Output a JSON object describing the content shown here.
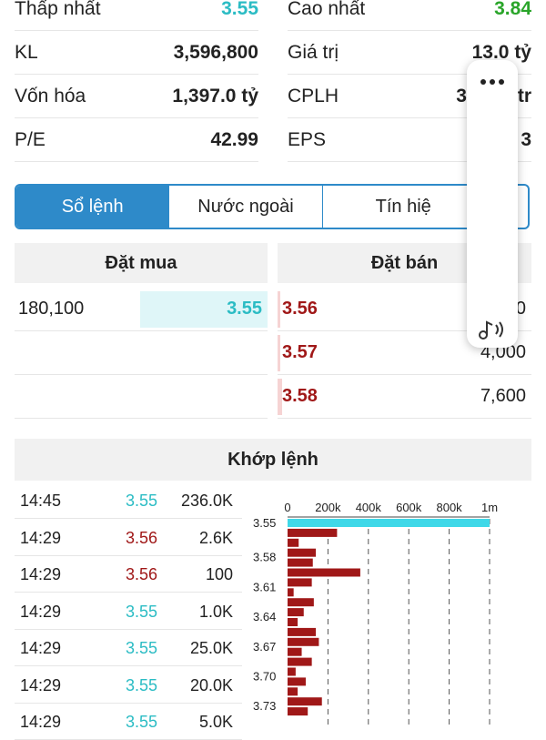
{
  "stats": [
    {
      "left_label": "Thấp nhất",
      "left_value": "3.55",
      "right_label": "Cao nhất",
      "right_value": "3.84"
    },
    {
      "left_label": "KL",
      "left_value": "3,596,800",
      "right_label": "Giá trị",
      "right_value": "13.0 tỷ"
    },
    {
      "left_label": "Vốn hóa",
      "left_value": "1,397.0 tỷ",
      "right_label": "CPLH",
      "right_value": "3",
      "right_suffix": "tr"
    },
    {
      "left_label": "P/E",
      "left_value": "42.99",
      "right_label": "EPS",
      "right_value": "3"
    }
  ],
  "tabs": [
    {
      "label": "Sổ lệnh"
    },
    {
      "label": "Nước ngoài"
    },
    {
      "label": "Tín hiệ"
    }
  ],
  "orderbook": {
    "buy_header": "Đặt mua",
    "sell_header": "Đặt bán",
    "buy_rows": [
      {
        "volume": "180,100",
        "price": "3.55",
        "fill": 0.9
      }
    ],
    "sell_rows": [
      {
        "price": "3.56",
        "volume": "0"
      },
      {
        "price": "3.57",
        "volume": "4,000"
      },
      {
        "price": "3.58",
        "volume": "7,600"
      }
    ]
  },
  "matched": {
    "header": "Khớp lệnh",
    "trades": [
      {
        "time": "14:45",
        "price": "3.55",
        "volume": "236.0K",
        "color": "teal"
      },
      {
        "time": "14:29",
        "price": "3.56",
        "volume": "2.6K",
        "color": "red"
      },
      {
        "time": "14:29",
        "price": "3.56",
        "volume": "100",
        "color": "red"
      },
      {
        "time": "14:29",
        "price": "3.55",
        "volume": "1.0K",
        "color": "teal"
      },
      {
        "time": "14:29",
        "price": "3.55",
        "volume": "25.0K",
        "color": "teal"
      },
      {
        "time": "14:29",
        "price": "3.55",
        "volume": "20.0K",
        "color": "teal"
      },
      {
        "time": "14:29",
        "price": "3.55",
        "volume": "5.0K",
        "color": "teal"
      }
    ]
  },
  "chart_data": {
    "type": "bar",
    "orientation": "horizontal",
    "x_ticks": [
      "0",
      "200k",
      "400k",
      "600k",
      "800k",
      "1m"
    ],
    "xlim": [
      0,
      1000000
    ],
    "y_labels": [
      "3.55",
      "3.58",
      "3.61",
      "3.64",
      "3.67",
      "3.70",
      "3.73"
    ],
    "bars": [
      {
        "price": 3.55,
        "value": 1000000,
        "color": "#3fd8e8"
      },
      {
        "price": 3.56,
        "value": 245000,
        "color": "#a01818"
      },
      {
        "price": 3.57,
        "value": 55000,
        "color": "#a01818"
      },
      {
        "price": 3.58,
        "value": 140000,
        "color": "#a01818"
      },
      {
        "price": 3.59,
        "value": 125000,
        "color": "#a01818"
      },
      {
        "price": 3.6,
        "value": 360000,
        "color": "#a01818"
      },
      {
        "price": 3.61,
        "value": 120000,
        "color": "#a01818"
      },
      {
        "price": 3.62,
        "value": 30000,
        "color": "#a01818"
      },
      {
        "price": 3.63,
        "value": 130000,
        "color": "#a01818"
      },
      {
        "price": 3.64,
        "value": 80000,
        "color": "#a01818"
      },
      {
        "price": 3.65,
        "value": 50000,
        "color": "#a01818"
      },
      {
        "price": 3.66,
        "value": 140000,
        "color": "#a01818"
      },
      {
        "price": 3.67,
        "value": 155000,
        "color": "#a01818"
      },
      {
        "price": 3.68,
        "value": 70000,
        "color": "#a01818"
      },
      {
        "price": 3.69,
        "value": 120000,
        "color": "#a01818"
      },
      {
        "price": 3.7,
        "value": 40000,
        "color": "#a01818"
      },
      {
        "price": 3.71,
        "value": 90000,
        "color": "#a01818"
      },
      {
        "price": 3.72,
        "value": 50000,
        "color": "#a01818"
      },
      {
        "price": 3.73,
        "value": 170000,
        "color": "#a01818"
      },
      {
        "price": 3.74,
        "value": 100000,
        "color": "#a01818"
      }
    ]
  },
  "colors": {
    "accent": "#2e8ac9",
    "up": "#2aa52a",
    "down": "#a01818",
    "ref": "#2bbcc4"
  },
  "floating": {
    "icons": [
      "more-icon",
      "audio-icon"
    ]
  }
}
